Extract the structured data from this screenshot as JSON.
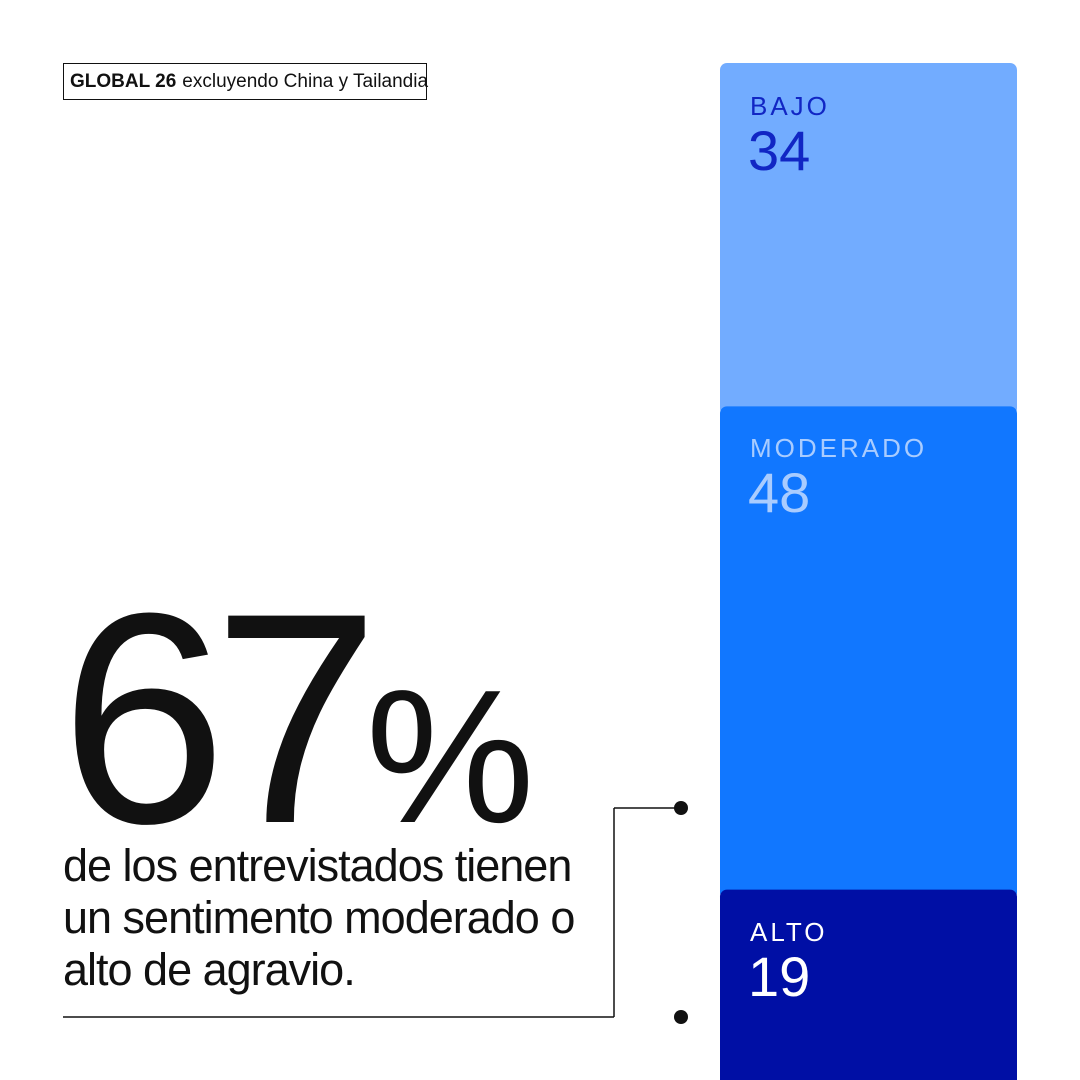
{
  "badge": {
    "bold": "GLOBAL 26",
    "rest": "excluyendo China y Tailandia"
  },
  "headline": {
    "number": "67",
    "unit": "%"
  },
  "description": "de los entrevistados tienen un sentimento moderado o alto de agravio.",
  "chart_data": {
    "type": "bar",
    "stacked": true,
    "categories": [
      "BAJO",
      "MODERADO",
      "ALTO"
    ],
    "values": [
      34,
      48,
      19
    ],
    "title": "",
    "xlabel": "",
    "ylabel": "",
    "colors": [
      "#72ACFF",
      "#1177FF",
      "#000FA5"
    ],
    "label_colors": [
      "#1126C4",
      "#A9CCFF",
      "#FFFFFF"
    ],
    "bracket_covers": [
      "MODERADO",
      "ALTO"
    ]
  }
}
